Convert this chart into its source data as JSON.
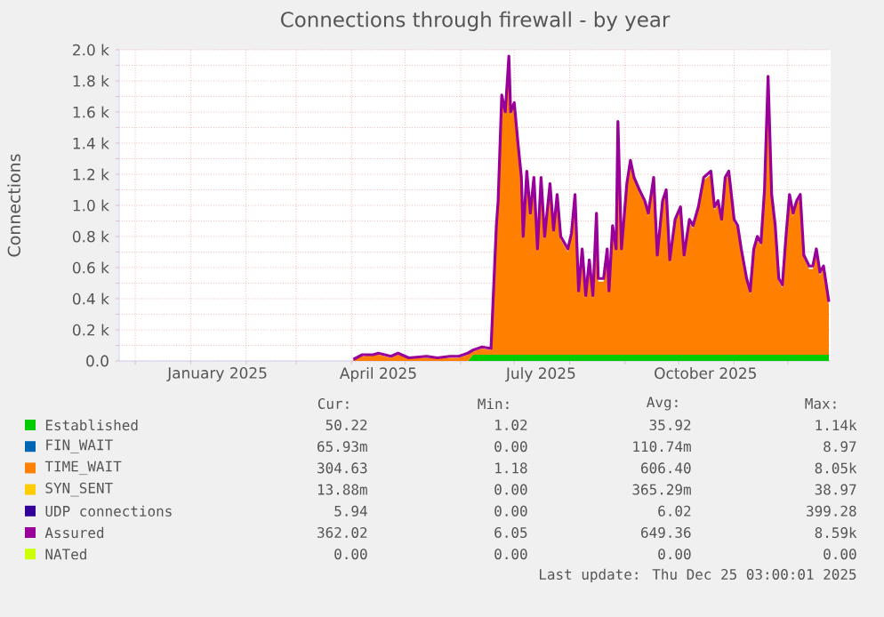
{
  "chart_data": {
    "type": "area",
    "title": "Connections through firewall - by year",
    "ylabel": "Connections",
    "stacked": true,
    "grid": true,
    "legend": "bottom",
    "x": [
      "2025-04-02",
      "2025-04-07",
      "2025-04-13",
      "2025-04-16",
      "2025-04-23",
      "2025-04-27",
      "2025-05-03",
      "2025-05-13",
      "2025-05-19",
      "2025-05-26",
      "2025-05-31",
      "2025-06-05",
      "2025-06-08",
      "2025-06-13",
      "2025-06-18",
      "2025-06-21",
      "2025-06-22",
      "2025-06-24",
      "2025-06-26",
      "2025-06-28",
      "2025-06-29",
      "2025-07-01",
      "2025-07-03",
      "2025-07-05",
      "2025-07-06",
      "2025-07-08",
      "2025-07-10",
      "2025-07-12",
      "2025-07-14",
      "2025-07-16",
      "2025-07-18",
      "2025-07-21",
      "2025-07-23",
      "2025-07-25",
      "2025-07-27",
      "2025-07-29",
      "2025-07-31",
      "2025-08-02",
      "2025-08-04",
      "2025-08-06",
      "2025-08-08",
      "2025-08-10",
      "2025-08-12",
      "2025-08-14",
      "2025-08-16",
      "2025-08-17",
      "2025-08-20",
      "2025-08-22",
      "2025-08-23",
      "2025-08-25",
      "2025-08-27",
      "2025-08-28",
      "2025-08-30",
      "2025-09-02",
      "2025-09-04",
      "2025-09-06",
      "2025-09-09",
      "2025-09-12",
      "2025-09-14",
      "2025-09-17",
      "2025-09-19",
      "2025-09-22",
      "2025-09-24",
      "2025-09-26",
      "2025-09-29",
      "2025-10-02",
      "2025-10-04",
      "2025-10-07",
      "2025-10-09",
      "2025-10-12",
      "2025-10-15",
      "2025-10-19",
      "2025-10-21",
      "2025-10-23",
      "2025-10-25",
      "2025-10-27",
      "2025-10-29",
      "2025-11-01",
      "2025-11-03",
      "2025-11-05",
      "2025-11-08",
      "2025-11-10",
      "2025-11-12",
      "2025-11-14",
      "2025-11-16",
      "2025-11-18",
      "2025-11-20",
      "2025-11-22",
      "2025-11-24",
      "2025-11-26",
      "2025-11-28",
      "2025-11-30",
      "2025-12-02",
      "2025-12-04",
      "2025-12-06",
      "2025-12-08",
      "2025-12-10",
      "2025-12-13",
      "2025-12-15",
      "2025-12-17",
      "2025-12-19",
      "2025-12-21",
      "2025-12-24"
    ],
    "xlim": [
      "2024-11-22",
      "2025-12-25"
    ],
    "xticks": [
      {
        "value": "2024-12-01",
        "label": null
      },
      {
        "value": "2025-01-01",
        "label": null
      },
      {
        "value": "2025-01-16",
        "label": "January 2025"
      },
      {
        "value": "2025-02-01",
        "label": null
      },
      {
        "value": "2025-03-01",
        "label": null
      },
      {
        "value": "2025-04-01",
        "label": null
      },
      {
        "value": "2025-04-16",
        "label": "April 2025"
      },
      {
        "value": "2025-05-01",
        "label": null
      },
      {
        "value": "2025-06-01",
        "label": null
      },
      {
        "value": "2025-07-01",
        "label": null
      },
      {
        "value": "2025-07-16",
        "label": "July 2025"
      },
      {
        "value": "2025-08-01",
        "label": null
      },
      {
        "value": "2025-09-01",
        "label": null
      },
      {
        "value": "2025-10-01",
        "label": null
      },
      {
        "value": "2025-10-16",
        "label": "October 2025"
      },
      {
        "value": "2025-11-01",
        "label": null
      },
      {
        "value": "2025-12-01",
        "label": null
      }
    ],
    "ylim": [
      0,
      2000
    ],
    "yticks": [
      {
        "value": 0,
        "label": "0.0"
      },
      {
        "value": 100,
        "label": null
      },
      {
        "value": 200,
        "label": "0.2 k"
      },
      {
        "value": 300,
        "label": null
      },
      {
        "value": 400,
        "label": "0.4 k"
      },
      {
        "value": 500,
        "label": null
      },
      {
        "value": 600,
        "label": "0.6 k"
      },
      {
        "value": 700,
        "label": null
      },
      {
        "value": 800,
        "label": "0.8 k"
      },
      {
        "value": 900,
        "label": null
      },
      {
        "value": 1000,
        "label": "1.0 k"
      },
      {
        "value": 1100,
        "label": null
      },
      {
        "value": 1200,
        "label": "1.2 k"
      },
      {
        "value": 1300,
        "label": null
      },
      {
        "value": 1400,
        "label": "1.4 k"
      },
      {
        "value": 1500,
        "label": null
      },
      {
        "value": 1600,
        "label": "1.6 k"
      },
      {
        "value": 1700,
        "label": null
      },
      {
        "value": 1800,
        "label": "1.8 k"
      },
      {
        "value": 1900,
        "label": null
      },
      {
        "value": 2000,
        "label": "2.0 k"
      }
    ],
    "series": [
      {
        "name": "Established",
        "color": "#00cc00",
        "values": [
          0,
          0,
          0,
          0,
          0,
          0,
          0,
          0,
          0,
          0,
          0,
          0,
          40,
          40,
          40,
          40,
          40,
          40,
          40,
          40,
          40,
          40,
          40,
          40,
          40,
          40,
          40,
          40,
          40,
          40,
          40,
          40,
          40,
          40,
          40,
          40,
          40,
          40,
          40,
          40,
          40,
          40,
          40,
          40,
          40,
          40,
          40,
          40,
          40,
          40,
          40,
          40,
          40,
          40,
          40,
          40,
          40,
          40,
          40,
          40,
          40,
          40,
          40,
          40,
          40,
          40,
          40,
          40,
          40,
          40,
          40,
          40,
          40,
          40,
          40,
          40,
          40,
          40,
          40,
          40,
          40,
          40,
          40,
          40,
          40,
          40,
          40,
          40,
          40,
          40,
          40,
          40,
          40,
          40,
          40,
          40,
          40,
          40,
          40,
          40,
          40,
          40,
          40
        ]
      },
      {
        "name": "FIN_WAIT",
        "color": "#0066b3",
        "values": [
          null,
          null,
          null,
          null,
          null,
          null,
          null,
          null,
          null,
          null,
          null,
          null,
          null,
          null,
          null,
          null,
          null,
          null,
          null,
          null,
          null,
          null,
          null,
          null,
          null,
          null,
          null,
          null,
          null,
          null,
          null,
          null,
          null,
          null,
          null,
          null,
          null,
          null,
          null,
          null,
          null,
          null,
          null,
          null,
          null,
          null,
          null,
          null,
          null,
          null,
          null,
          null,
          null,
          null,
          null,
          null,
          null,
          null,
          null,
          null,
          null,
          null,
          null,
          null,
          null,
          null,
          null,
          null,
          null,
          null,
          null,
          null,
          null,
          null,
          null,
          null,
          null,
          null,
          null,
          null,
          null,
          null,
          null,
          null,
          null,
          null,
          null,
          null,
          null,
          null,
          null,
          null,
          null,
          null,
          null,
          null,
          null,
          null,
          null,
          null,
          null,
          null,
          null
        ]
      },
      {
        "name": "TIME_WAIT",
        "color": "#ff8000",
        "values": [
          10,
          30,
          40,
          40,
          20,
          40,
          20,
          20,
          20,
          20,
          20,
          40,
          20,
          40,
          30,
          810,
          970,
          1650,
          1540,
          1900,
          1540,
          1600,
          1350,
          1120,
          740,
          1160,
          890,
          1120,
          660,
          1120,
          740,
          1080,
          780,
          1010,
          740,
          700,
          660,
          760,
          1010,
          390,
          660,
          360,
          590,
          360,
          890,
          470,
          470,
          660,
          390,
          810,
          660,
          1480,
          660,
          1080,
          1230,
          1120,
          1040,
          970,
          890,
          1120,
          620,
          970,
          1040,
          590,
          850,
          930,
          620,
          850,
          810,
          930,
          1120,
          1160,
          930,
          970,
          850,
          1120,
          1160,
          850,
          810,
          660,
          470,
          390,
          660,
          740,
          700,
          1040,
          1770,
          1010,
          810,
          470,
          430,
          740,
          1010,
          890,
          970,
          1010,
          620,
          550,
          550,
          660,
          510,
          550,
          320
        ]
      },
      {
        "name": "SYN_SENT",
        "color": "#ffcc00",
        "values": [
          null,
          null,
          null,
          null,
          null,
          null,
          null,
          null,
          null,
          null,
          null,
          null,
          null,
          null,
          null,
          null,
          null,
          null,
          null,
          null,
          null,
          null,
          null,
          null,
          null,
          null,
          null,
          null,
          null,
          null,
          null,
          null,
          null,
          null,
          null,
          null,
          null,
          null,
          null,
          null,
          null,
          null,
          null,
          null,
          null,
          null,
          null,
          null,
          null,
          null,
          null,
          null,
          null,
          null,
          null,
          null,
          null,
          null,
          null,
          null,
          null,
          null,
          null,
          null,
          null,
          null,
          null,
          null,
          null,
          null,
          null,
          null,
          null,
          null,
          null,
          null,
          null,
          null,
          null,
          null,
          null,
          null,
          null,
          null,
          null,
          null,
          null,
          null,
          null,
          null,
          null,
          null,
          null,
          null,
          null,
          null,
          null,
          null,
          null,
          null,
          null,
          null,
          null
        ]
      },
      {
        "name": "UDP connections",
        "type": "line",
        "color": "#330099",
        "values": [
          null,
          null,
          null,
          null,
          null,
          null,
          null,
          null,
          null,
          null,
          null,
          null,
          null,
          null,
          null,
          null,
          null,
          null,
          null,
          null,
          null,
          null,
          null,
          null,
          null,
          null,
          null,
          null,
          null,
          null,
          null,
          null,
          null,
          null,
          null,
          null,
          null,
          null,
          null,
          null,
          null,
          null,
          null,
          null,
          null,
          null,
          null,
          null,
          null,
          null,
          null,
          null,
          null,
          null,
          null,
          null,
          null,
          null,
          null,
          null,
          null,
          null,
          null,
          null,
          null,
          null,
          null,
          null,
          null,
          null,
          null,
          null,
          null,
          null,
          null,
          null,
          null,
          null,
          null,
          null,
          null,
          null,
          null,
          null,
          null,
          null,
          null,
          null,
          null,
          null,
          null,
          null,
          null,
          null,
          null,
          null,
          null,
          null,
          null,
          null,
          null,
          null,
          null
        ]
      },
      {
        "name": "Assured",
        "type": "line",
        "color": "#990099",
        "values": [
          10,
          40,
          40,
          50,
          30,
          50,
          20,
          30,
          20,
          30,
          30,
          50,
          70,
          90,
          80,
          870,
          1030,
          1710,
          1600,
          1960,
          1600,
          1660,
          1410,
          1180,
          800,
          1220,
          950,
          1180,
          720,
          1180,
          800,
          1140,
          840,
          1070,
          800,
          760,
          720,
          820,
          1070,
          450,
          720,
          420,
          650,
          420,
          950,
          530,
          530,
          720,
          450,
          870,
          720,
          1540,
          720,
          1140,
          1290,
          1180,
          1100,
          1030,
          950,
          1180,
          680,
          1030,
          1100,
          650,
          910,
          990,
          680,
          910,
          870,
          990,
          1180,
          1220,
          990,
          1030,
          910,
          1180,
          1220,
          910,
          870,
          720,
          530,
          450,
          720,
          800,
          760,
          1100,
          1830,
          1070,
          870,
          530,
          490,
          800,
          1070,
          950,
          1030,
          1070,
          680,
          610,
          610,
          720,
          570,
          610,
          380
        ]
      },
      {
        "name": "NATed",
        "type": "line",
        "color": "#ccff00",
        "values": [
          null,
          null,
          null,
          null,
          null,
          null,
          null,
          null,
          null,
          null,
          null,
          null,
          null,
          null,
          null,
          null,
          null,
          null,
          null,
          null,
          null,
          null,
          null,
          null,
          null,
          null,
          null,
          null,
          null,
          null,
          null,
          null,
          null,
          null,
          null,
          null,
          null,
          null,
          null,
          null,
          null,
          null,
          null,
          null,
          null,
          null,
          null,
          null,
          null,
          null,
          null,
          null,
          null,
          null,
          null,
          null,
          null,
          null,
          null,
          null,
          null,
          null,
          null,
          null,
          null,
          null,
          null,
          null,
          null,
          null,
          null,
          null,
          null,
          null,
          null,
          null,
          null,
          null,
          null,
          null,
          null,
          null,
          null,
          null,
          null,
          null,
          null,
          null,
          null,
          null,
          null,
          null,
          null,
          null,
          null,
          null,
          null,
          null,
          null,
          null,
          null,
          null,
          null
        ]
      }
    ],
    "annotations": [
      "Cur:",
      "Min:",
      "Avg:",
      "Max:",
      "50.22",
      "1.02",
      "35.92",
      "1.14k",
      "65.93m",
      "0.00",
      "110.74m",
      "8.97",
      "304.63",
      "1.18",
      "606.40",
      "8.05k",
      "13.88m",
      "0.00",
      "365.29m",
      "38.97",
      "5.94",
      "0.00",
      "6.02",
      "399.28",
      "362.02",
      "6.05",
      "649.36",
      "8.59k",
      "0.00",
      "0.00",
      "0.00",
      "0.00",
      "Last update: Thu Dec 25 03:00:01 2025"
    ]
  }
}
